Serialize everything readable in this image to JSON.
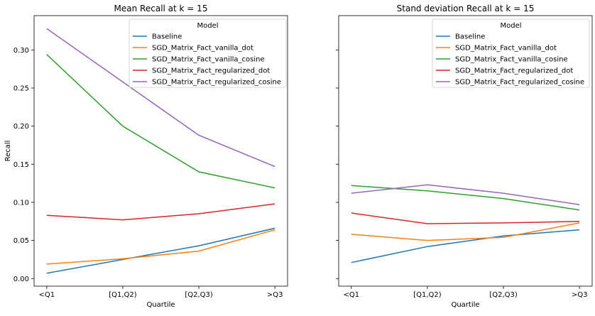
{
  "chart_data": [
    {
      "type": "line",
      "title": "Mean Recall at k = 15",
      "xlabel": "Quartile",
      "ylabel": "Recall",
      "categories": [
        "<Q1",
        "[Q1,Q2)",
        "[Q2,Q3)",
        ">Q3"
      ],
      "ylim": [
        -0.01,
        0.345
      ],
      "yticks": [
        "0.00",
        "0.05",
        "0.10",
        "0.15",
        "0.20",
        "0.25",
        "0.30"
      ],
      "grid": false,
      "legend": {
        "title": "Model",
        "placement": "top-right"
      },
      "series": [
        {
          "name": "Baseline",
          "color": "#1f77b4",
          "values": [
            0.007,
            0.025,
            0.043,
            0.066
          ]
        },
        {
          "name": "SGD_Matrix_Fact_vanilla_dot",
          "color": "#ff7f0e",
          "values": [
            0.019,
            0.026,
            0.036,
            0.064
          ]
        },
        {
          "name": "SGD_Matrix_Fact_vanilla_cosine",
          "color": "#2ca02c",
          "values": [
            0.294,
            0.2,
            0.14,
            0.119
          ]
        },
        {
          "name": "SGD_Matrix_Fact_regularized_dot",
          "color": "#d62728",
          "values": [
            0.083,
            0.077,
            0.085,
            0.098
          ]
        },
        {
          "name": "SGD_Matrix_Fact_regularized_cosine",
          "color": "#9467bd",
          "values": [
            0.328,
            0.258,
            0.188,
            0.147
          ]
        }
      ]
    },
    {
      "type": "line",
      "title": "Stand deviation Recall at k = 15",
      "xlabel": "Quartile",
      "ylabel": "",
      "categories": [
        "<Q1",
        "[Q1,Q2)",
        "[Q2,Q3)",
        ">Q3"
      ],
      "ylim": [
        -0.01,
        0.345
      ],
      "yticks": [],
      "grid": false,
      "legend": {
        "title": "Model",
        "placement": "top-right"
      },
      "series": [
        {
          "name": "Baseline",
          "color": "#1f77b4",
          "values": [
            0.021,
            0.042,
            0.056,
            0.064
          ]
        },
        {
          "name": "SGD_Matrix_Fact_vanilla_dot",
          "color": "#ff7f0e",
          "values": [
            0.058,
            0.05,
            0.054,
            0.073
          ]
        },
        {
          "name": "SGD_Matrix_Fact_vanilla_cosine",
          "color": "#2ca02c",
          "values": [
            0.122,
            0.115,
            0.105,
            0.09
          ]
        },
        {
          "name": "SGD_Matrix_Fact_regularized_dot",
          "color": "#d62728",
          "values": [
            0.086,
            0.072,
            0.073,
            0.075
          ]
        },
        {
          "name": "SGD_Matrix_Fact_regularized_cosine",
          "color": "#9467bd",
          "values": [
            0.112,
            0.123,
            0.112,
            0.097
          ]
        }
      ]
    }
  ]
}
